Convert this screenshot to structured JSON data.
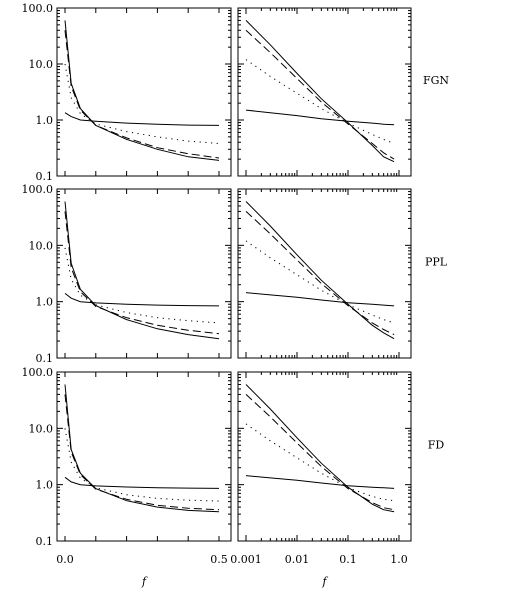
{
  "chart_data": {
    "type": "line",
    "layout": "3x2 grid; rows = models, columns = linear-f and log-f axes",
    "y_axis": {
      "scale": "log",
      "range": [
        0.1,
        100.0
      ],
      "ticks": [
        "0.1",
        "1.0",
        "10.0",
        "100.0"
      ]
    },
    "x_axis_linear": {
      "range": [
        0.0,
        0.5
      ],
      "ticks": [
        "0.0",
        "0.5"
      ],
      "label": "f"
    },
    "x_axis_log": {
      "scale": "log",
      "range": [
        0.001,
        1.0
      ],
      "ticks": [
        "0.001",
        "0.01",
        "0.1",
        "1.0"
      ],
      "label": "f"
    },
    "line_styles": [
      "solid",
      "dashed",
      "dotted",
      "solid"
    ],
    "grid": false,
    "legend": "none",
    "rows": [
      {
        "label": "FGN",
        "x_linear": [
          0.0,
          0.02,
          0.05,
          0.1,
          0.2,
          0.3,
          0.4,
          0.5
        ],
        "x_log": [
          0.001,
          0.003,
          0.01,
          0.03,
          0.1,
          0.3,
          0.5,
          0.8
        ],
        "series": [
          {
            "style": "solid",
            "linear": [
              60,
              4.5,
              1.6,
              0.8,
              0.45,
              0.3,
              0.22,
              0.19
            ],
            "log": [
              60,
              22,
              6.8,
              2.4,
              0.9,
              0.35,
              0.22,
              0.18
            ]
          },
          {
            "style": "dashed",
            "linear": [
              40,
              4,
              1.5,
              0.8,
              0.48,
              0.32,
              0.25,
              0.21
            ],
            "log": [
              40,
              16,
              5.5,
              2.1,
              0.85,
              0.38,
              0.26,
              0.2
            ]
          },
          {
            "style": "dotted",
            "linear": [
              10,
              2.5,
              1.3,
              0.85,
              0.62,
              0.5,
              0.42,
              0.38
            ],
            "log": [
              12,
              6,
              3,
              1.6,
              0.88,
              0.55,
              0.45,
              0.38
            ]
          },
          {
            "style": "solid",
            "linear": [
              1.35,
              1.15,
              1.0,
              0.95,
              0.88,
              0.84,
              0.81,
              0.8
            ],
            "log": [
              1.5,
              1.35,
              1.2,
              1.05,
              0.95,
              0.88,
              0.84,
              0.82
            ]
          }
        ]
      },
      {
        "label": "PPL",
        "x_linear": [
          0.0,
          0.02,
          0.05,
          0.1,
          0.2,
          0.3,
          0.4,
          0.5
        ],
        "x_log": [
          0.001,
          0.003,
          0.01,
          0.03,
          0.1,
          0.3,
          0.5,
          0.8
        ],
        "series": [
          {
            "style": "solid",
            "linear": [
              60,
              4.8,
              1.65,
              0.85,
              0.48,
              0.33,
              0.26,
              0.22
            ],
            "log": [
              60,
              22,
              6.8,
              2.4,
              0.9,
              0.38,
              0.28,
              0.22
            ]
          },
          {
            "style": "dashed",
            "linear": [
              40,
              4,
              1.5,
              0.82,
              0.52,
              0.38,
              0.31,
              0.27
            ],
            "log": [
              40,
              16,
              5.5,
              2.1,
              0.85,
              0.42,
              0.32,
              0.26
            ]
          },
          {
            "style": "dotted",
            "linear": [
              9,
              2.5,
              1.3,
              0.88,
              0.64,
              0.52,
              0.46,
              0.42
            ],
            "log": [
              12,
              6,
              3,
              1.6,
              0.88,
              0.58,
              0.48,
              0.42
            ]
          },
          {
            "style": "solid",
            "linear": [
              1.4,
              1.15,
              1.0,
              0.95,
              0.9,
              0.87,
              0.85,
              0.84
            ],
            "log": [
              1.45,
              1.32,
              1.2,
              1.07,
              0.96,
              0.9,
              0.87,
              0.84
            ]
          }
        ]
      },
      {
        "label": "FD",
        "x_linear": [
          0.0,
          0.02,
          0.05,
          0.1,
          0.2,
          0.3,
          0.4,
          0.5
        ],
        "x_log": [
          0.001,
          0.003,
          0.01,
          0.03,
          0.1,
          0.3,
          0.5,
          0.8
        ],
        "series": [
          {
            "style": "solid",
            "linear": [
              60,
              4.2,
              1.6,
              0.85,
              0.52,
              0.4,
              0.35,
              0.33
            ],
            "log": [
              60,
              22,
              6.8,
              2.4,
              0.9,
              0.45,
              0.36,
              0.33
            ]
          },
          {
            "style": "dashed",
            "linear": [
              40,
              3.8,
              1.5,
              0.83,
              0.55,
              0.43,
              0.38,
              0.36
            ],
            "log": [
              40,
              16,
              5.5,
              2.1,
              0.85,
              0.48,
              0.39,
              0.36
            ]
          },
          {
            "style": "dotted",
            "linear": [
              10,
              2.5,
              1.3,
              0.88,
              0.66,
              0.57,
              0.53,
              0.51
            ],
            "log": [
              12,
              6,
              3,
              1.6,
              0.88,
              0.62,
              0.55,
              0.52
            ]
          },
          {
            "style": "solid",
            "linear": [
              1.35,
              1.12,
              1.0,
              0.95,
              0.91,
              0.88,
              0.87,
              0.86
            ],
            "log": [
              1.45,
              1.32,
              1.2,
              1.07,
              0.96,
              0.9,
              0.88,
              0.86
            ]
          }
        ]
      }
    ]
  }
}
